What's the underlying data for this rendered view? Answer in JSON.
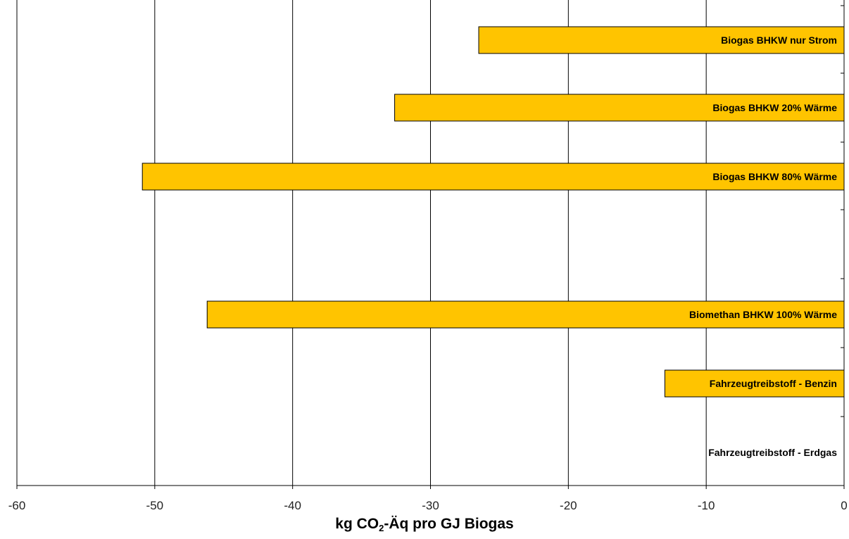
{
  "chart_data": {
    "type": "bar",
    "orientation": "horizontal",
    "title": "",
    "xlabel": {
      "prefix": "kg CO",
      "subscript": "2",
      "suffix": "-Äq pro GJ Biogas"
    },
    "ylabel": "",
    "xlim": [
      -60,
      0
    ],
    "xticks": [
      -60,
      -50,
      -40,
      -30,
      -20,
      -10,
      0
    ],
    "grid": "vertical",
    "bar_color": "#FFC400",
    "categories": [
      "Biogas BHKW nur Strom",
      "Biogas BHKW 20% Wärme",
      "Biogas BHKW 80% Wärme",
      "Biomethan BHKW 100% Wärme",
      "Fahrzeugtreibstoff  - Benzin",
      "Fahrzeugtreibstoff - Erdgas"
    ],
    "values": [
      -26.5,
      -32.6,
      -50.9,
      -46.2,
      -13.0,
      0
    ]
  }
}
